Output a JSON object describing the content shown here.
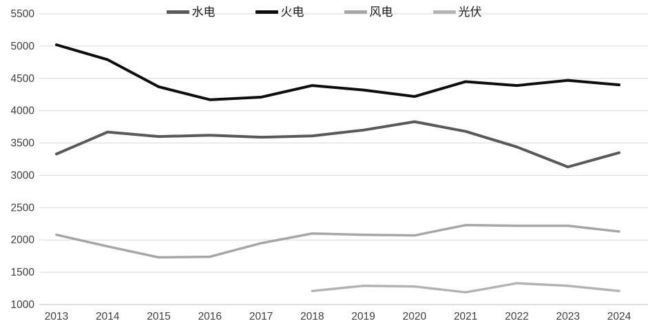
{
  "chart_data": {
    "type": "line",
    "title": "",
    "xlabel": "",
    "ylabel": "",
    "x": [
      2013,
      2014,
      2015,
      2016,
      2017,
      2018,
      2019,
      2020,
      2021,
      2022,
      2023,
      2024
    ],
    "series": [
      {
        "key": "hydro",
        "name": "水电",
        "color": "#595959",
        "stroke_width": 4,
        "values": [
          3330,
          3670,
          3600,
          3620,
          3590,
          3610,
          3700,
          3830,
          3680,
          3440,
          3130,
          3350
        ]
      },
      {
        "key": "thermal",
        "name": "火电",
        "color": "#0d0d0d",
        "stroke_width": 4,
        "values": [
          5020,
          4790,
          4370,
          4170,
          4210,
          4390,
          4320,
          4220,
          4450,
          4390,
          4470,
          4400
        ]
      },
      {
        "key": "wind",
        "name": "风电",
        "color": "#a6a6a6",
        "stroke_width": 3.5,
        "values": [
          2080,
          1900,
          1730,
          1740,
          1950,
          2100,
          2080,
          2070,
          2230,
          2220,
          2220,
          2130
        ]
      },
      {
        "key": "solar",
        "name": "光伏",
        "color": "#b3b3b3",
        "stroke_width": 3.5,
        "values": [
          null,
          null,
          null,
          null,
          null,
          1210,
          1290,
          1280,
          1190,
          1330,
          1290,
          1210
        ]
      }
    ],
    "ylim": [
      1000,
      5500
    ],
    "ytick_step": 500,
    "ytick_labels": [
      "1000",
      "1500",
      "2000",
      "2500",
      "3000",
      "3500",
      "4000",
      "4500",
      "5000",
      "5500"
    ],
    "xtick_labels": [
      "2013",
      "2014",
      "2015",
      "2016",
      "2017",
      "2018",
      "2019",
      "2020",
      "2021",
      "2022",
      "2023",
      "2024"
    ],
    "grid": "horizontal",
    "gridline_color": "#d9d9d9",
    "axis_line_color": "#bfbfbf",
    "tick_label_color": "#404040",
    "legend_position": "top-center"
  }
}
